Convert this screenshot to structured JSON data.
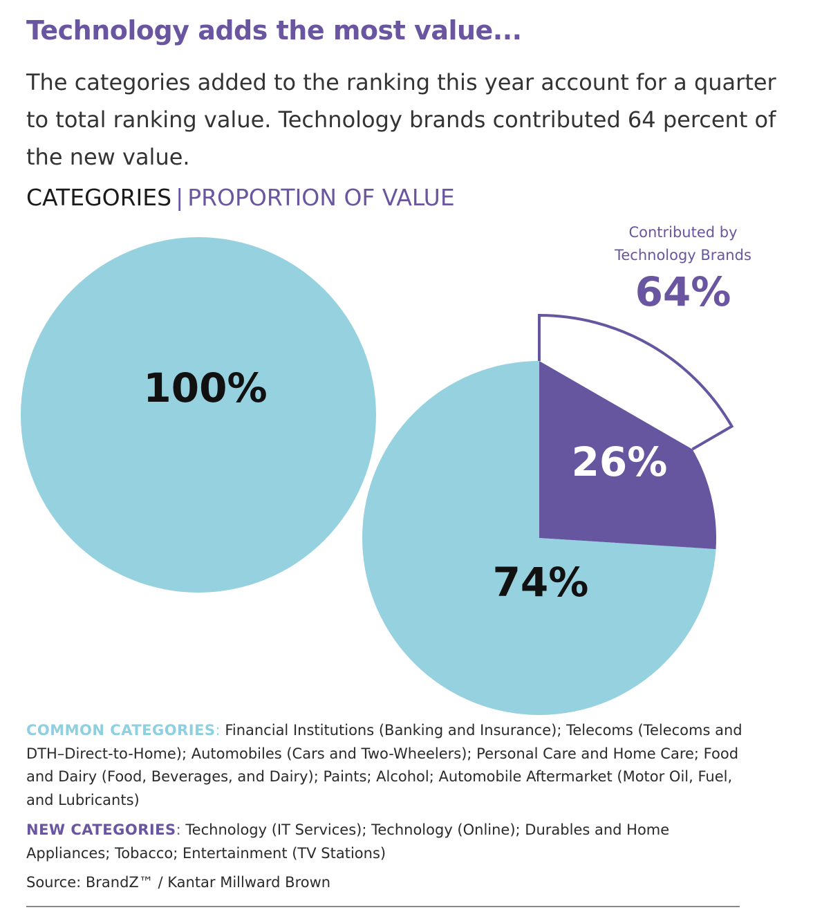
{
  "title": "Technology adds the most value...",
  "intro": "The categories added to the ranking this year account for a quarter to total ranking value. Technology brands contributed 64 percent of the new value.",
  "header": {
    "left": "CATEGORIES",
    "divider": "|",
    "right": "PROPORTION OF VALUE"
  },
  "chart_data": {
    "type": "pie",
    "colors": {
      "common": "#96d1e0",
      "new": "#6656a0",
      "accent_text": "#6a55a0",
      "dark_text": "#111111"
    },
    "pies": [
      {
        "slices": [
          {
            "value": 100,
            "label": "100%"
          }
        ]
      },
      {
        "slices": [
          {
            "value": 74,
            "label": "74%"
          },
          {
            "value": 26,
            "label": "26%"
          }
        ]
      }
    ],
    "callout": {
      "line1": "Contributed by",
      "line2": "Technology Brands",
      "value": 64,
      "label": "64%"
    }
  },
  "notes": {
    "common_key": "COMMON CATEGORIES",
    "common_text": "Financial Institutions (Banking and Insurance); Telecoms (Telecoms and DTH–Direct-to-Home); Automobiles (Cars and Two-Wheelers); Personal Care and Home Care; Food and Dairy (Food, Beverages, and Dairy); Paints; Alcohol; Automobile Aftermarket (Motor Oil, Fuel, and Lubricants)",
    "new_key": "NEW CATEGORIES",
    "new_text": "Technology (IT Services); Technology (Online); Durables and Home Appliances; Tobacco; Entertainment (TV Stations)",
    "colon": ":"
  },
  "source": "Source: BrandZ™ / Kantar Millward Brown"
}
